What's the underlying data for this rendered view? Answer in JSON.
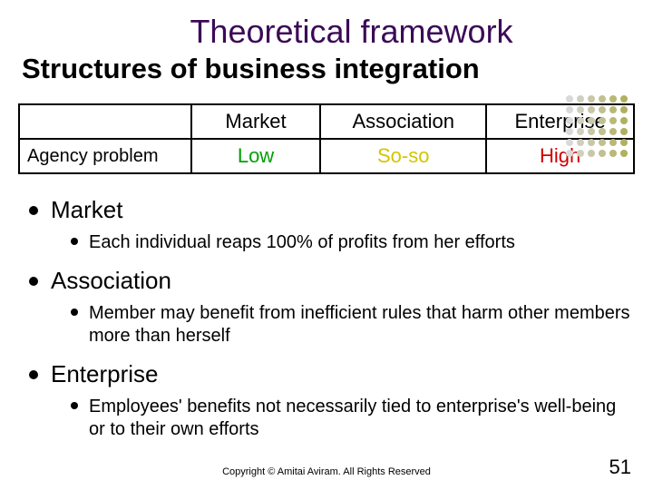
{
  "title": {
    "text": "Theoretical framework",
    "color": "#3b0a57"
  },
  "subtitle": "Structures of business integration",
  "dots": {
    "colors": [
      "#d9d9d9",
      "#d0d0c0",
      "#c8c8a8",
      "#c0c090",
      "#b8b878",
      "#b0b060"
    ]
  },
  "table": {
    "row_label": "Agency problem",
    "columns": [
      {
        "header": "Market",
        "value": "Low",
        "value_color": "#00a000"
      },
      {
        "header": "Association",
        "value": "So-so",
        "value_color": "#d4c400"
      },
      {
        "header": "Enterprise",
        "value": "High",
        "value_color": "#d00000"
      }
    ],
    "border_color": "#000000",
    "col_widths": [
      "28%",
      "21%",
      "27%",
      "24%"
    ]
  },
  "sections": [
    {
      "heading": "Market",
      "items": [
        "Each individual reaps 100% of profits from her efforts"
      ]
    },
    {
      "heading": "Association",
      "items": [
        "Member may benefit from inefficient rules that harm other members more than herself"
      ]
    },
    {
      "heading": "Enterprise",
      "items": [
        "Employees' benefits not necessarily tied to enterprise's well-being or to their own efforts"
      ]
    }
  ],
  "copyright": "Copyright © Amitai Aviram. All Rights Reserved",
  "page_number": "51"
}
